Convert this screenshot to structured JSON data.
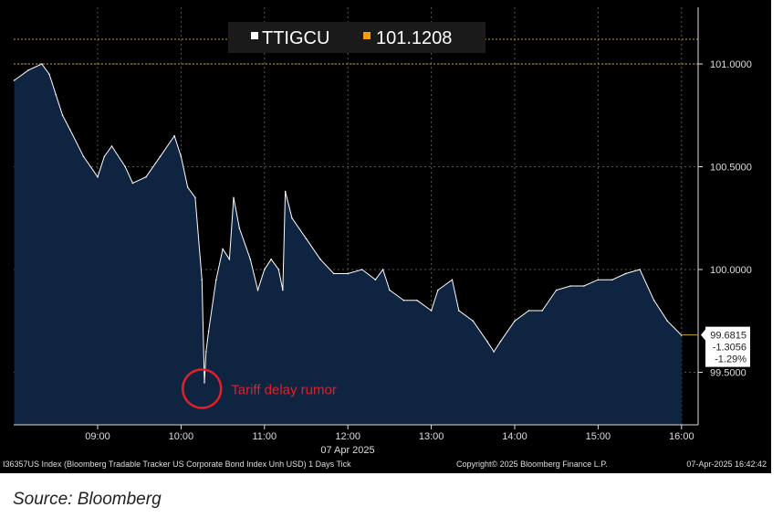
{
  "chart_data": {
    "type": "area",
    "legend": {
      "series_name": "TTIGCU",
      "last_value": "101.1208"
    },
    "x_ticks": [
      "09:00",
      "10:00",
      "11:00",
      "12:00",
      "13:00",
      "14:00",
      "15:00",
      "16:00"
    ],
    "x_tick_hours": [
      9,
      10,
      11,
      12,
      13,
      14,
      15,
      16
    ],
    "xlabel": "07 Apr 2025",
    "y_ticks": [
      "101.0000",
      "100.5000",
      "100.0000",
      "99.5000"
    ],
    "y_tick_values": [
      101,
      100.5,
      100,
      99.5
    ],
    "ylim": [
      99.25,
      101.27
    ],
    "xlim": [
      8.0,
      16.2
    ],
    "reference_lines": [
      101.12,
      101.0
    ],
    "last": {
      "value": "99.6815",
      "change": "-1.3056",
      "pct": "-1.29%"
    },
    "annotation": {
      "text": "Tariff delay rumor",
      "time": 10.25,
      "value": 99.45
    },
    "x": [
      8.0,
      8.17,
      8.33,
      8.42,
      8.5,
      8.58,
      8.67,
      8.83,
      9.0,
      9.08,
      9.17,
      9.33,
      9.42,
      9.58,
      9.75,
      9.92,
      10.0,
      10.08,
      10.17,
      10.25,
      10.28,
      10.3,
      10.33,
      10.42,
      10.5,
      10.58,
      10.63,
      10.7,
      10.83,
      10.92,
      11.0,
      11.08,
      11.17,
      11.22,
      11.25,
      11.33,
      11.5,
      11.67,
      11.83,
      12.0,
      12.17,
      12.33,
      12.42,
      12.5,
      12.67,
      12.83,
      13.0,
      13.08,
      13.25,
      13.33,
      13.5,
      13.67,
      13.75,
      13.83,
      14.0,
      14.17,
      14.33,
      14.5,
      14.67,
      14.83,
      15.0,
      15.17,
      15.33,
      15.5,
      15.67,
      15.83,
      16.0
    ],
    "y": [
      100.92,
      100.97,
      101.0,
      100.95,
      100.85,
      100.75,
      100.68,
      100.55,
      100.45,
      100.55,
      100.6,
      100.5,
      100.42,
      100.45,
      100.55,
      100.65,
      100.55,
      100.4,
      100.35,
      99.95,
      99.45,
      99.6,
      99.7,
      99.95,
      100.1,
      100.05,
      100.35,
      100.2,
      100.05,
      99.9,
      100.0,
      100.05,
      100.0,
      99.9,
      100.38,
      100.25,
      100.15,
      100.05,
      99.98,
      99.98,
      100.0,
      99.95,
      100.0,
      99.9,
      99.85,
      99.85,
      99.8,
      99.9,
      99.95,
      99.8,
      99.75,
      99.65,
      99.6,
      99.65,
      99.75,
      99.8,
      99.8,
      99.9,
      99.92,
      99.92,
      99.95,
      99.95,
      99.98,
      100.0,
      99.85,
      99.75,
      99.68
    ],
    "series_color": "#ffffff",
    "fill_color": "#0f2440",
    "legend_color": "#f39c12",
    "annotation_color": "#e0202a"
  },
  "footer": {
    "description": "I36357US Index (Bloomberg Tradable Tracker US Corporate Bond Index Unh USD) 1 Days  Tick",
    "copyright": "Copyright© 2025 Bloomberg Finance L.P.",
    "timestamp": "07-Apr-2025 16:42:42"
  },
  "source": "Source: Bloomberg"
}
